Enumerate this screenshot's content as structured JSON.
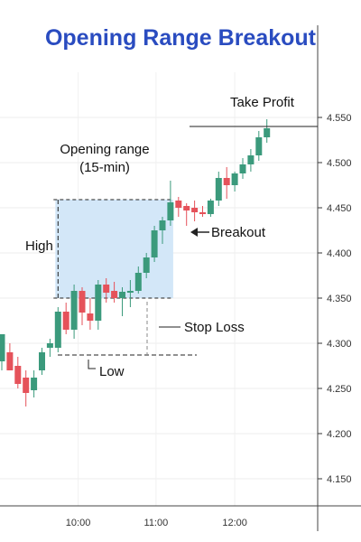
{
  "chart_data": {
    "type": "candlestick",
    "title": "Opening Range Breakout",
    "x_ticks": [
      "10:00",
      "11:00",
      "12:00"
    ],
    "y_ticks": [
      "4.150",
      "4.200",
      "4.250",
      "4.300",
      "4.350",
      "4.400",
      "4.450",
      "4.500",
      "4.550"
    ],
    "ylim": [
      4.12,
      4.6
    ],
    "candles": [
      {
        "o": 4.28,
        "h": 4.31,
        "l": 4.27,
        "c": 4.31
      },
      {
        "o": 4.29,
        "h": 4.3,
        "l": 4.27,
        "c": 4.27
      },
      {
        "o": 4.275,
        "h": 4.285,
        "l": 4.25,
        "c": 4.255
      },
      {
        "o": 4.262,
        "h": 4.27,
        "l": 4.23,
        "c": 4.245
      },
      {
        "o": 4.248,
        "h": 4.27,
        "l": 4.24,
        "c": 4.262
      },
      {
        "o": 4.27,
        "h": 4.295,
        "l": 4.265,
        "c": 4.29
      },
      {
        "o": 4.295,
        "h": 4.305,
        "l": 4.285,
        "c": 4.3
      },
      {
        "o": 4.295,
        "h": 4.34,
        "l": 4.29,
        "c": 4.335
      },
      {
        "o": 4.335,
        "h": 4.345,
        "l": 4.31,
        "c": 4.315
      },
      {
        "o": 4.315,
        "h": 4.365,
        "l": 4.305,
        "c": 4.358
      },
      {
        "o": 4.358,
        "h": 4.362,
        "l": 4.32,
        "c": 4.334
      },
      {
        "o": 4.333,
        "h": 4.35,
        "l": 4.315,
        "c": 4.325
      },
      {
        "o": 4.325,
        "h": 4.37,
        "l": 4.315,
        "c": 4.365
      },
      {
        "o": 4.365,
        "h": 4.372,
        "l": 4.345,
        "c": 4.356
      },
      {
        "o": 4.358,
        "h": 4.368,
        "l": 4.345,
        "c": 4.35
      },
      {
        "o": 4.35,
        "h": 4.362,
        "l": 4.33,
        "c": 4.357
      },
      {
        "o": 4.357,
        "h": 4.37,
        "l": 4.34,
        "c": 4.358
      },
      {
        "o": 4.358,
        "h": 4.385,
        "l": 4.355,
        "c": 4.378
      },
      {
        "o": 4.378,
        "h": 4.4,
        "l": 4.372,
        "c": 4.395
      },
      {
        "o": 4.395,
        "h": 4.43,
        "l": 4.39,
        "c": 4.425
      },
      {
        "o": 4.425,
        "h": 4.44,
        "l": 4.41,
        "c": 4.436
      },
      {
        "o": 4.436,
        "h": 4.48,
        "l": 4.43,
        "c": 4.456
      },
      {
        "o": 4.458,
        "h": 4.462,
        "l": 4.44,
        "c": 4.45
      },
      {
        "o": 4.452,
        "h": 4.455,
        "l": 4.43,
        "c": 4.447
      },
      {
        "o": 4.45,
        "h": 4.458,
        "l": 4.435,
        "c": 4.445
      },
      {
        "o": 4.445,
        "h": 4.452,
        "l": 4.44,
        "c": 4.443
      },
      {
        "o": 4.443,
        "h": 4.46,
        "l": 4.44,
        "c": 4.458
      },
      {
        "o": 4.458,
        "h": 4.49,
        "l": 4.452,
        "c": 4.483
      },
      {
        "o": 4.483,
        "h": 4.495,
        "l": 4.46,
        "c": 4.475
      },
      {
        "o": 4.475,
        "h": 4.49,
        "l": 4.468,
        "c": 4.488
      },
      {
        "o": 4.488,
        "h": 4.505,
        "l": 4.482,
        "c": 4.498
      },
      {
        "o": 4.498,
        "h": 4.515,
        "l": 4.49,
        "c": 4.508
      },
      {
        "o": 4.508,
        "h": 4.535,
        "l": 4.502,
        "c": 4.528
      },
      {
        "o": 4.528,
        "h": 4.548,
        "l": 4.522,
        "c": 4.538
      }
    ],
    "opening_range": {
      "high": 4.459,
      "low": 4.35,
      "start_candle": 7,
      "end_candle": 21
    },
    "annotations": {
      "opening_range": "Opening range\n(15-min)",
      "high": "High",
      "low": "Low",
      "breakout": "Breakout",
      "stop_loss": "Stop Loss",
      "take_profit": "Take Profit"
    },
    "levels": {
      "take_profit": 4.54,
      "stop_loss": 4.287,
      "low": 4.287
    },
    "colors": {
      "up": "#3b9a7c",
      "down": "#e5525a",
      "range_fill": "#d3e7f8",
      "title": "#2a4cc0"
    }
  }
}
